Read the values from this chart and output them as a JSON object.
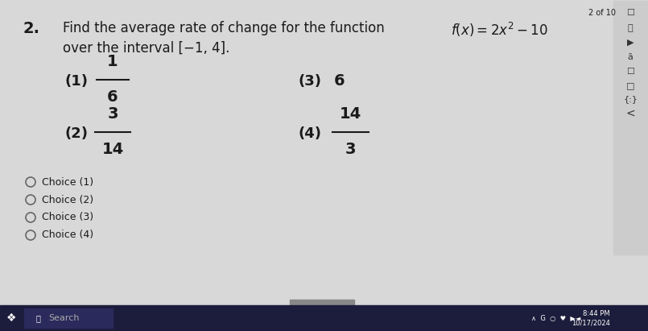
{
  "header": "2 of 10",
  "question_number": "2.",
  "question_text": "Find the average rate of change for the function ",
  "question_func": "$f(x) = 2x^2 - 10$",
  "question_line2": "over the interval [−1, 4].",
  "choice1_label": "(1)",
  "choice1_num": "1",
  "choice1_den": "6",
  "choice2_label": "(2)",
  "choice2_num": "3",
  "choice2_den": "14",
  "choice3_label": "(3)",
  "choice3_val": "6",
  "choice4_label": "(4)",
  "choice4_num": "14",
  "choice4_den": "3",
  "radio_choices": [
    "Choice (1)",
    "Choice (2)",
    "Choice (3)",
    "Choice (4)"
  ],
  "bg_color": "#d8d8d8",
  "text_color": "#1a1a1a",
  "sidebar_bg": "#c8c8c8",
  "taskbar_color": "#1c1c3c"
}
